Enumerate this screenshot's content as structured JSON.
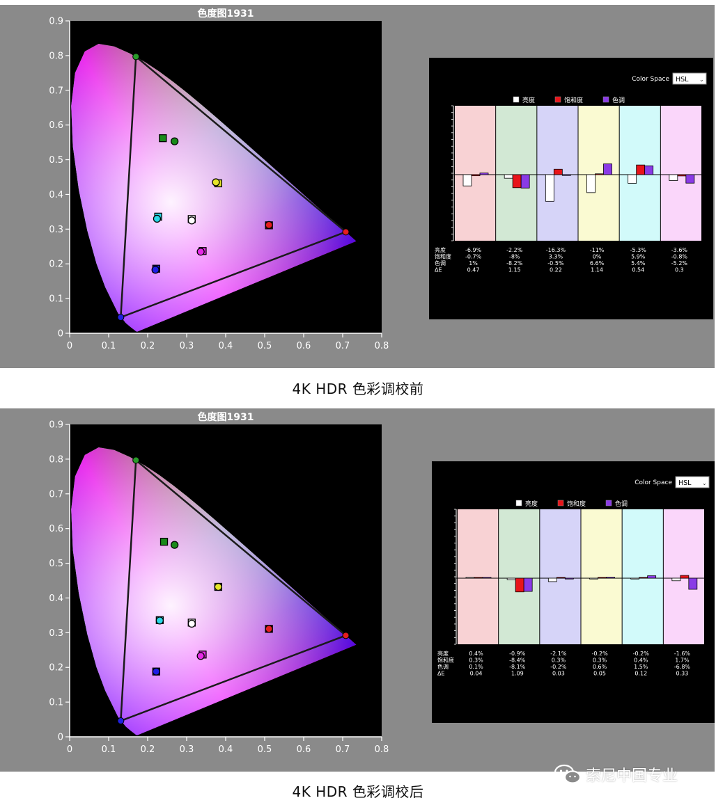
{
  "sections": [
    {
      "caption": "4K HDR 色彩调校前",
      "cie": {
        "title": "色度图1931",
        "x_ticks": [
          "0",
          "0.1",
          "0.2",
          "0.3",
          "0.4",
          "0.5",
          "0.6",
          "0.7",
          "0.8"
        ],
        "y_ticks": [
          "0",
          "0.1",
          "0.2",
          "0.3",
          "0.4",
          "0.5",
          "0.6",
          "0.7",
          "0.8",
          "0.9"
        ],
        "gamut": [
          [
            0.17,
            0.797
          ],
          [
            0.708,
            0.292
          ],
          [
            0.131,
            0.046
          ]
        ],
        "targets": [
          {
            "x": 0.239,
            "y": 0.562,
            "color": "#1a8a1a"
          },
          {
            "x": 0.381,
            "y": 0.432,
            "color": "#e6e62a"
          },
          {
            "x": 0.227,
            "y": 0.336,
            "color": "#2ad8e6"
          },
          {
            "x": 0.313,
            "y": 0.329,
            "color": "#ffffff"
          },
          {
            "x": 0.511,
            "y": 0.311,
            "color": "#e61e1e"
          },
          {
            "x": 0.341,
            "y": 0.237,
            "color": "#e62ae6"
          },
          {
            "x": 0.222,
            "y": 0.186,
            "color": "#1e1ee6"
          }
        ],
        "measured": [
          {
            "x": 0.269,
            "y": 0.553,
            "color": "#1a8a1a"
          },
          {
            "x": 0.375,
            "y": 0.435,
            "color": "#e6e62a"
          },
          {
            "x": 0.224,
            "y": 0.33,
            "color": "#2ad8e6"
          },
          {
            "x": 0.313,
            "y": 0.325,
            "color": "#ffffff"
          },
          {
            "x": 0.511,
            "y": 0.312,
            "color": "#e61e1e"
          },
          {
            "x": 0.336,
            "y": 0.235,
            "color": "#e62ae6"
          },
          {
            "x": 0.22,
            "y": 0.183,
            "color": "#1e1ee6"
          }
        ]
      },
      "hsl": {
        "color_space_label": "Color Space",
        "color_space_value": "HSL",
        "legend": [
          {
            "label": "亮度",
            "color": "#ffffff"
          },
          {
            "label": "饱和度",
            "color": "#e8141a"
          },
          {
            "label": "色调",
            "color": "#8a3ae6"
          }
        ],
        "row_labels": [
          "亮度",
          "饱和度",
          "色调",
          "ΔE"
        ],
        "columns": [
          {
            "bg": "#f8d2d4",
            "l": -6.9,
            "s": -0.7,
            "h": 1.0,
            "lt": "-6.9%",
            "st": "-0.7%",
            "ht": "1%",
            "de": "0.47"
          },
          {
            "bg": "#d2e8d4",
            "l": -2.2,
            "s": -8.0,
            "h": -8.2,
            "lt": "-2.2%",
            "st": "-8%",
            "ht": "-8.2%",
            "de": "1.15"
          },
          {
            "bg": "#d6d4f8",
            "l": -16.3,
            "s": 3.3,
            "h": -0.5,
            "lt": "-16.3%",
            "st": "3.3%",
            "ht": "-0.5%",
            "de": "0.22"
          },
          {
            "bg": "#fafad2",
            "l": -11,
            "s": 0,
            "h": 6.6,
            "lt": "-11%",
            "st": "0%",
            "ht": "6.6%",
            "de": "1.14"
          },
          {
            "bg": "#d2fafa",
            "l": -5.3,
            "s": 5.9,
            "h": 5.4,
            "lt": "-5.3%",
            "st": "5.9%",
            "ht": "5.4%",
            "de": "0.54"
          },
          {
            "bg": "#fad6fa",
            "l": -3.6,
            "s": -0.8,
            "h": -5.2,
            "lt": "-3.6%",
            "st": "-0.8%",
            "ht": "-5.2%",
            "de": "0.3"
          }
        ]
      }
    },
    {
      "caption": "4K HDR 色彩调校后",
      "cie": {
        "title": "色度图1931",
        "x_ticks": [
          "0",
          "0.1",
          "0.2",
          "0.3",
          "0.4",
          "0.5",
          "0.6",
          "0.7",
          "0.8"
        ],
        "y_ticks": [
          "0",
          "0.1",
          "0.2",
          "0.3",
          "0.4",
          "0.5",
          "0.6",
          "0.7",
          "0.8",
          "0.9"
        ],
        "gamut": [
          [
            0.17,
            0.797
          ],
          [
            0.708,
            0.292
          ],
          [
            0.131,
            0.046
          ]
        ],
        "targets": [
          {
            "x": 0.242,
            "y": 0.562,
            "color": "#1a8a1a"
          },
          {
            "x": 0.381,
            "y": 0.432,
            "color": "#e6e62a"
          },
          {
            "x": 0.231,
            "y": 0.336,
            "color": "#2ad8e6"
          },
          {
            "x": 0.313,
            "y": 0.329,
            "color": "#ffffff"
          },
          {
            "x": 0.511,
            "y": 0.311,
            "color": "#e61e1e"
          },
          {
            "x": 0.341,
            "y": 0.237,
            "color": "#e62ae6"
          },
          {
            "x": 0.222,
            "y": 0.188,
            "color": "#1e1ee6"
          }
        ],
        "measured": [
          {
            "x": 0.269,
            "y": 0.553,
            "color": "#1a8a1a"
          },
          {
            "x": 0.381,
            "y": 0.432,
            "color": "#e6e62a"
          },
          {
            "x": 0.231,
            "y": 0.335,
            "color": "#2ad8e6"
          },
          {
            "x": 0.313,
            "y": 0.326,
            "color": "#ffffff"
          },
          {
            "x": 0.511,
            "y": 0.311,
            "color": "#e61e1e"
          },
          {
            "x": 0.336,
            "y": 0.233,
            "color": "#e62ae6"
          },
          {
            "x": 0.222,
            "y": 0.188,
            "color": "#1e1ee6"
          }
        ]
      },
      "hsl": {
        "color_space_label": "Color Space",
        "color_space_value": "HSL",
        "legend": [
          {
            "label": "亮度",
            "color": "#ffffff"
          },
          {
            "label": "饱和度",
            "color": "#e8141a"
          },
          {
            "label": "色调",
            "color": "#8a3ae6"
          }
        ],
        "row_labels": [
          "亮度",
          "饱和度",
          "色调",
          "ΔE"
        ],
        "columns": [
          {
            "bg": "#f8d2d4",
            "l": 0.4,
            "s": 0.3,
            "h": 0.1,
            "lt": "0.4%",
            "st": "0.3%",
            "ht": "0.1%",
            "de": "0.04"
          },
          {
            "bg": "#d2e8d4",
            "l": -0.9,
            "s": -8.4,
            "h": -8.1,
            "lt": "-0.9%",
            "st": "-8.4%",
            "ht": "-8.1%",
            "de": "1.09"
          },
          {
            "bg": "#d6d4f8",
            "l": -2.1,
            "s": 0.3,
            "h": -0.2,
            "lt": "-2.1%",
            "st": "0.3%",
            "ht": "-0.2%",
            "de": "0.03"
          },
          {
            "bg": "#fafad2",
            "l": -0.2,
            "s": 0.3,
            "h": 0.6,
            "lt": "-0.2%",
            "st": "0.3%",
            "ht": "0.6%",
            "de": "0.05"
          },
          {
            "bg": "#d2fafa",
            "l": -0.2,
            "s": 0.4,
            "h": 1.5,
            "lt": "-0.2%",
            "st": "0.4%",
            "ht": "1.5%",
            "de": "0.12"
          },
          {
            "bg": "#fad6fa",
            "l": -1.6,
            "s": 1.7,
            "h": -6.8,
            "lt": "-1.6%",
            "st": "1.7%",
            "ht": "-6.8%",
            "de": "0.33"
          }
        ]
      }
    }
  ],
  "watermark": {
    "text": "索尼中国专业",
    "icon": "wechat-icon"
  },
  "chart_data": [
    {
      "type": "scatter",
      "title": "色度图1931",
      "xlim": [
        0,
        0.8
      ],
      "ylim": [
        0,
        0.9
      ],
      "series": [
        {
          "values": [
            [
              0.239,
              0.562
            ],
            [
              0.381,
              0.432
            ],
            [
              0.227,
              0.336
            ],
            [
              0.313,
              0.329
            ],
            [
              0.511,
              0.311
            ],
            [
              0.341,
              0.237
            ],
            [
              0.222,
              0.186
            ]
          ]
        },
        {
          "values": [
            [
              0.269,
              0.553
            ],
            [
              0.375,
              0.435
            ],
            [
              0.224,
              0.33
            ],
            [
              0.313,
              0.325
            ],
            [
              0.511,
              0.312
            ],
            [
              0.336,
              0.235
            ],
            [
              0.22,
              0.183
            ]
          ]
        }
      ]
    },
    {
      "type": "bar",
      "legend": [
        "亮度",
        "饱和度",
        "色调"
      ],
      "series": [
        {
          "name": "亮度",
          "values": [
            -6.9,
            -2.2,
            -16.3,
            -11,
            -5.3,
            -3.6
          ]
        },
        {
          "name": "饱和度",
          "values": [
            -0.7,
            -8,
            3.3,
            0,
            5.9,
            -0.8
          ]
        },
        {
          "name": "色调",
          "values": [
            1,
            -8.2,
            -0.5,
            6.6,
            5.4,
            -5.2
          ]
        }
      ],
      "delta_e": [
        0.47,
        1.15,
        0.22,
        1.14,
        0.54,
        0.3
      ]
    },
    {
      "type": "scatter",
      "title": "色度图1931",
      "xlim": [
        0,
        0.8
      ],
      "ylim": [
        0,
        0.9
      ],
      "series": [
        {
          "values": [
            [
              0.242,
              0.562
            ],
            [
              0.381,
              0.432
            ],
            [
              0.231,
              0.336
            ],
            [
              0.313,
              0.329
            ],
            [
              0.511,
              0.311
            ],
            [
              0.341,
              0.237
            ],
            [
              0.222,
              0.188
            ]
          ]
        },
        {
          "values": [
            [
              0.269,
              0.553
            ],
            [
              0.381,
              0.432
            ],
            [
              0.231,
              0.335
            ],
            [
              0.313,
              0.326
            ],
            [
              0.511,
              0.311
            ],
            [
              0.336,
              0.233
            ],
            [
              0.222,
              0.188
            ]
          ]
        }
      ]
    },
    {
      "type": "bar",
      "legend": [
        "亮度",
        "饱和度",
        "色调"
      ],
      "series": [
        {
          "name": "亮度",
          "values": [
            0.4,
            -0.9,
            -2.1,
            -0.2,
            -0.2,
            -1.6
          ]
        },
        {
          "name": "饱和度",
          "values": [
            0.3,
            -8.4,
            0.3,
            0.3,
            0.4,
            1.7
          ]
        },
        {
          "name": "色调",
          "values": [
            0.1,
            -8.1,
            -0.2,
            0.6,
            1.5,
            -6.8
          ]
        }
      ],
      "delta_e": [
        0.04,
        1.09,
        0.03,
        0.05,
        0.12,
        0.33
      ]
    }
  ]
}
